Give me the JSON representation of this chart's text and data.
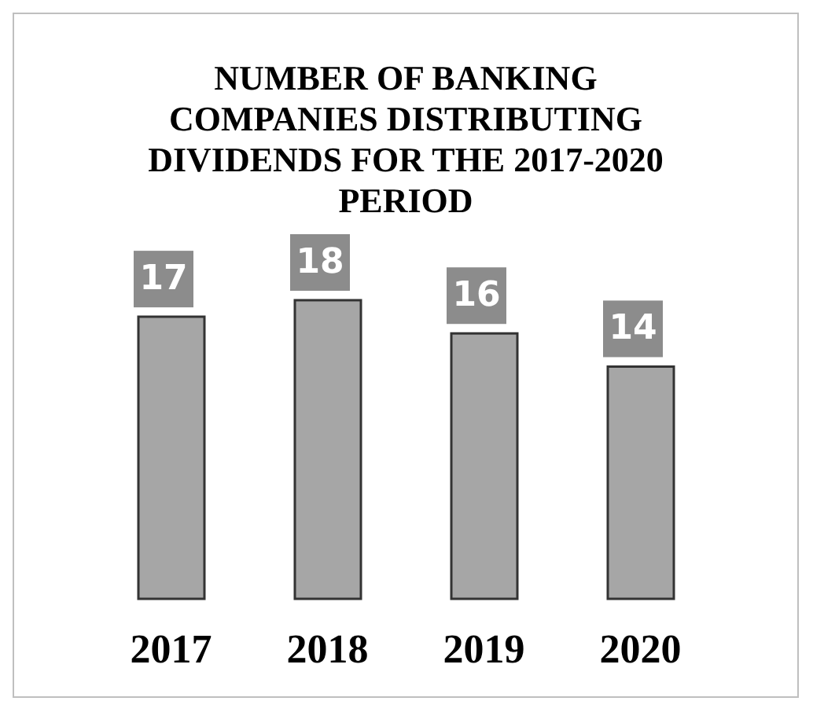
{
  "chart_data": {
    "type": "bar",
    "title": "NUMBER OF BANKING COMPANIES DISTRIBUTING DIVIDENDS FOR THE 2017-2020 PERIOD",
    "categories": [
      "2017",
      "2018",
      "2019",
      "2020"
    ],
    "values": [
      17,
      18,
      16,
      14
    ],
    "color": "#a6a6a6",
    "data_labels": true,
    "grid": false,
    "legend": false
  }
}
